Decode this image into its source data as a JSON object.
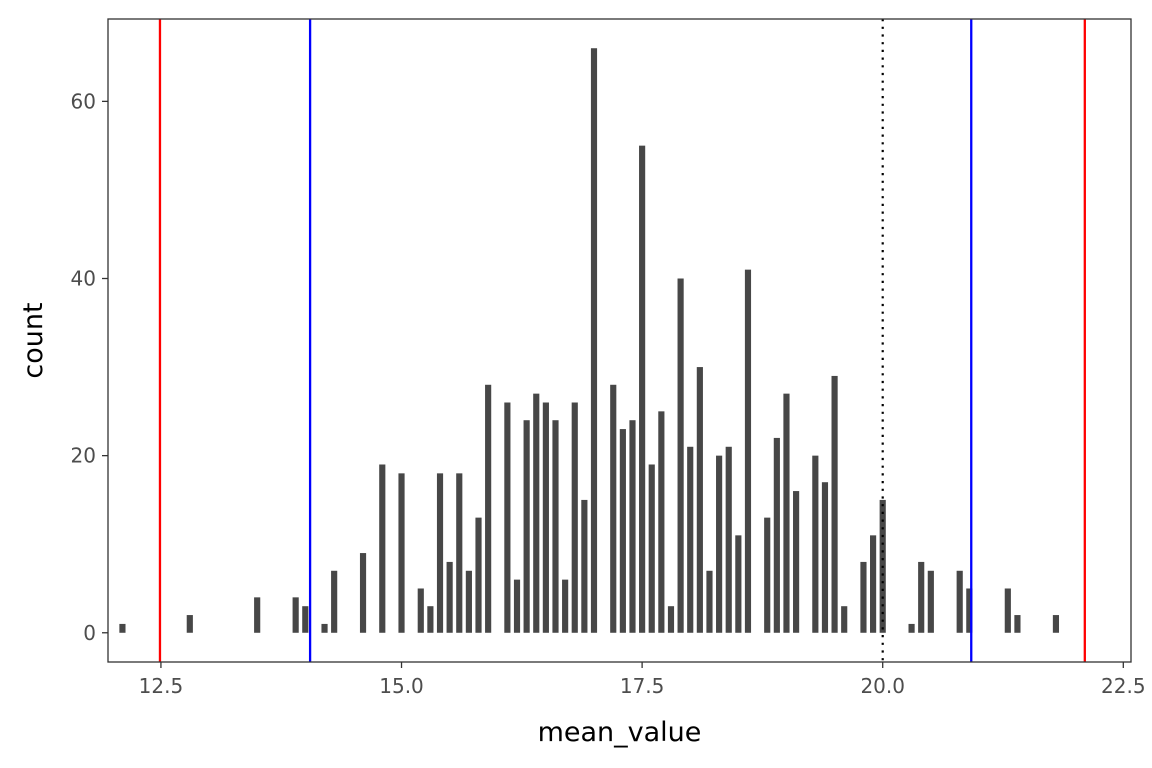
{
  "chart_data": {
    "type": "bar",
    "xlabel": "mean_value",
    "ylabel": "count",
    "xlim": [
      11.95,
      22.58
    ],
    "ylim": [
      -3.3,
      69.3
    ],
    "x_ticks": [
      12.5,
      15.0,
      17.5,
      20.0,
      22.5
    ],
    "x_tick_labels": [
      "12.5",
      "15.0",
      "17.5",
      "20.0",
      "22.5"
    ],
    "y_ticks": [
      0,
      20,
      40,
      60
    ],
    "y_tick_labels": [
      "0",
      "20",
      "40",
      "60"
    ],
    "grid": false,
    "bar_color": "#474747",
    "bar_width": 0.064,
    "x": [
      12.1,
      12.8,
      13.5,
      13.9,
      14.0,
      14.2,
      14.3,
      14.6,
      14.8,
      15.0,
      15.2,
      15.3,
      15.4,
      15.5,
      15.6,
      15.7,
      15.8,
      15.9,
      16.1,
      16.2,
      16.3,
      16.4,
      16.5,
      16.6,
      16.7,
      16.8,
      16.9,
      17.0,
      17.2,
      17.3,
      17.4,
      17.5,
      17.6,
      17.7,
      17.8,
      17.9,
      18.0,
      18.1,
      18.2,
      18.3,
      18.4,
      18.5,
      18.6,
      18.8,
      18.9,
      19.0,
      19.1,
      19.3,
      19.4,
      19.5,
      19.6,
      19.8,
      19.9,
      20.0,
      20.3,
      20.4,
      20.5,
      20.8,
      20.9,
      21.3,
      21.4,
      21.8
    ],
    "values": [
      1,
      2,
      4,
      4,
      3,
      1,
      7,
      9,
      19,
      18,
      5,
      3,
      18,
      8,
      18,
      7,
      13,
      28,
      26,
      6,
      24,
      27,
      26,
      24,
      6,
      26,
      15,
      66,
      28,
      23,
      24,
      55,
      19,
      25,
      3,
      40,
      21,
      30,
      7,
      20,
      21,
      11,
      41,
      13,
      22,
      27,
      16,
      20,
      17,
      29,
      3,
      8,
      11,
      15,
      1,
      8,
      7,
      7,
      5,
      5,
      2,
      2
    ],
    "vlines": [
      {
        "x": 12.49,
        "color": "#ff0000",
        "style": "solid"
      },
      {
        "x": 14.05,
        "color": "#0000ff",
        "style": "solid"
      },
      {
        "x": 20.0,
        "color": "#000000",
        "style": "dotted"
      },
      {
        "x": 20.92,
        "color": "#0000ff",
        "style": "solid"
      },
      {
        "x": 22.1,
        "color": "#ff0000",
        "style": "solid"
      }
    ]
  }
}
